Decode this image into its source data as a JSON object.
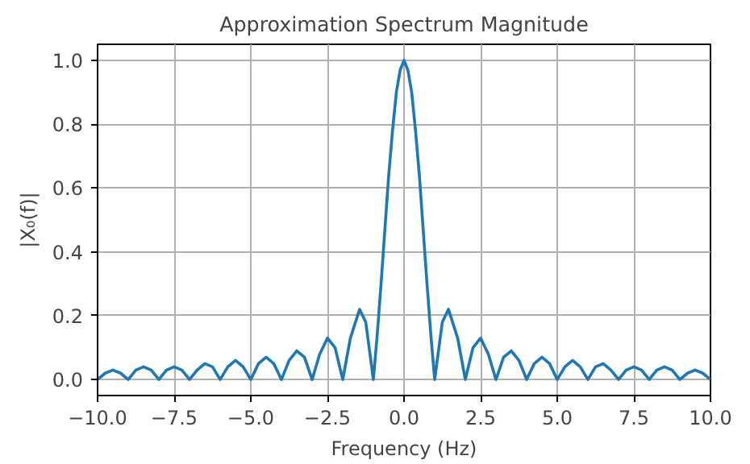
{
  "chart_data": {
    "type": "line",
    "title": "Approximation Spectrum Magnitude",
    "xlabel": "Frequency (Hz)",
    "ylabel": "|X₀(f)|",
    "x": [
      -10,
      -9.75,
      -9.5,
      -9.25,
      -9,
      -8.75,
      -8.5,
      -8.25,
      -8,
      -7.75,
      -7.5,
      -7.25,
      -7,
      -6.75,
      -6.5,
      -6.25,
      -6,
      -5.75,
      -5.5,
      -5.25,
      -5,
      -4.75,
      -4.5,
      -4.25,
      -4,
      -3.75,
      -3.5,
      -3.25,
      -3,
      -2.75,
      -2.5,
      -2.25,
      -2,
      -1.75,
      -1.45,
      -1.25,
      -1,
      -0.875,
      -0.75,
      -0.625,
      -0.5,
      -0.375,
      -0.25,
      -0.125,
      0,
      0.125,
      0.25,
      0.375,
      0.5,
      0.625,
      0.75,
      0.875,
      1,
      1.25,
      1.45,
      1.75,
      2,
      2.25,
      2.5,
      2.75,
      3,
      3.25,
      3.5,
      3.75,
      4,
      4.25,
      4.5,
      4.75,
      5,
      5.25,
      5.5,
      5.75,
      6,
      6.25,
      6.5,
      6.75,
      7,
      7.25,
      7.5,
      7.75,
      8,
      8.25,
      8.5,
      8.75,
      9,
      9.25,
      9.5,
      9.75,
      10
    ],
    "series": [
      {
        "color": "#1f77b4",
        "values": [
          0,
          0.02,
          0.03,
          0.02,
          0,
          0.03,
          0.04,
          0.03,
          0,
          0.03,
          0.04,
          0.03,
          0,
          0.03,
          0.05,
          0.04,
          0,
          0.04,
          0.06,
          0.04,
          0,
          0.05,
          0.07,
          0.05,
          0,
          0.06,
          0.09,
          0.07,
          0,
          0.08,
          0.13,
          0.1,
          0,
          0.13,
          0.22,
          0.18,
          0,
          0.14,
          0.3,
          0.47,
          0.64,
          0.78,
          0.9,
          0.97,
          1,
          0.97,
          0.9,
          0.78,
          0.64,
          0.47,
          0.3,
          0.14,
          0,
          0.18,
          0.22,
          0.13,
          0,
          0.1,
          0.13,
          0.08,
          0,
          0.07,
          0.09,
          0.06,
          0,
          0.05,
          0.07,
          0.05,
          0,
          0.04,
          0.06,
          0.04,
          0,
          0.04,
          0.05,
          0.03,
          0,
          0.03,
          0.04,
          0.03,
          0,
          0.03,
          0.04,
          0.03,
          0,
          0.02,
          0.03,
          0.02,
          0
        ]
      }
    ],
    "xlim": [
      -10,
      10
    ],
    "ylim": [
      -0.05,
      1.05
    ],
    "xticks": [
      {
        "value": -10,
        "label": "−10.0"
      },
      {
        "value": -7.5,
        "label": "−7.5"
      },
      {
        "value": -5,
        "label": "−5.0"
      },
      {
        "value": -2.5,
        "label": "−2.5"
      },
      {
        "value": 0,
        "label": "0.0"
      },
      {
        "value": 2.5,
        "label": "2.5"
      },
      {
        "value": 5,
        "label": "5.0"
      },
      {
        "value": 7.5,
        "label": "7.5"
      },
      {
        "value": 10,
        "label": "10.0"
      }
    ],
    "yticks": [
      {
        "value": 0,
        "label": "0.0"
      },
      {
        "value": 0.2,
        "label": "0.2"
      },
      {
        "value": 0.4,
        "label": "0.4"
      },
      {
        "value": 0.6,
        "label": "0.6"
      },
      {
        "value": 0.8,
        "label": "0.8"
      },
      {
        "value": 1,
        "label": "1.0"
      }
    ],
    "grid": true,
    "line_style": "solid"
  }
}
